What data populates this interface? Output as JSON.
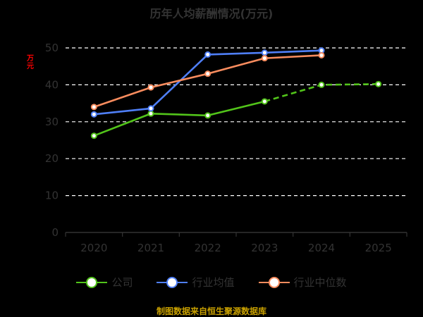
{
  "chart_data": {
    "type": "line",
    "title": "历年人均薪酬情况(万元)",
    "ylabel": "万元",
    "categories": [
      "2020",
      "2021",
      "2022",
      "2023",
      "2024",
      "2025"
    ],
    "ylim": [
      0,
      50
    ],
    "yticks": [
      0,
      10,
      20,
      30,
      40,
      50
    ],
    "grid": true,
    "legend_position": "bottom",
    "source": "制图数据来自恒生聚源数据库",
    "series": [
      {
        "name": "公司",
        "color": "#52c41a",
        "values": [
          26.2,
          32.2,
          31.7,
          35.5,
          40.0,
          40.2
        ],
        "dashed_from": 4
      },
      {
        "name": "行业均值",
        "color": "#4f7ff7",
        "values": [
          32.0,
          33.6,
          48.2,
          48.7,
          49.3,
          null
        ]
      },
      {
        "name": "行业中位数",
        "color": "#f98c5e",
        "values": [
          34.0,
          39.3,
          43.0,
          47.2,
          48.0,
          null
        ]
      }
    ]
  }
}
